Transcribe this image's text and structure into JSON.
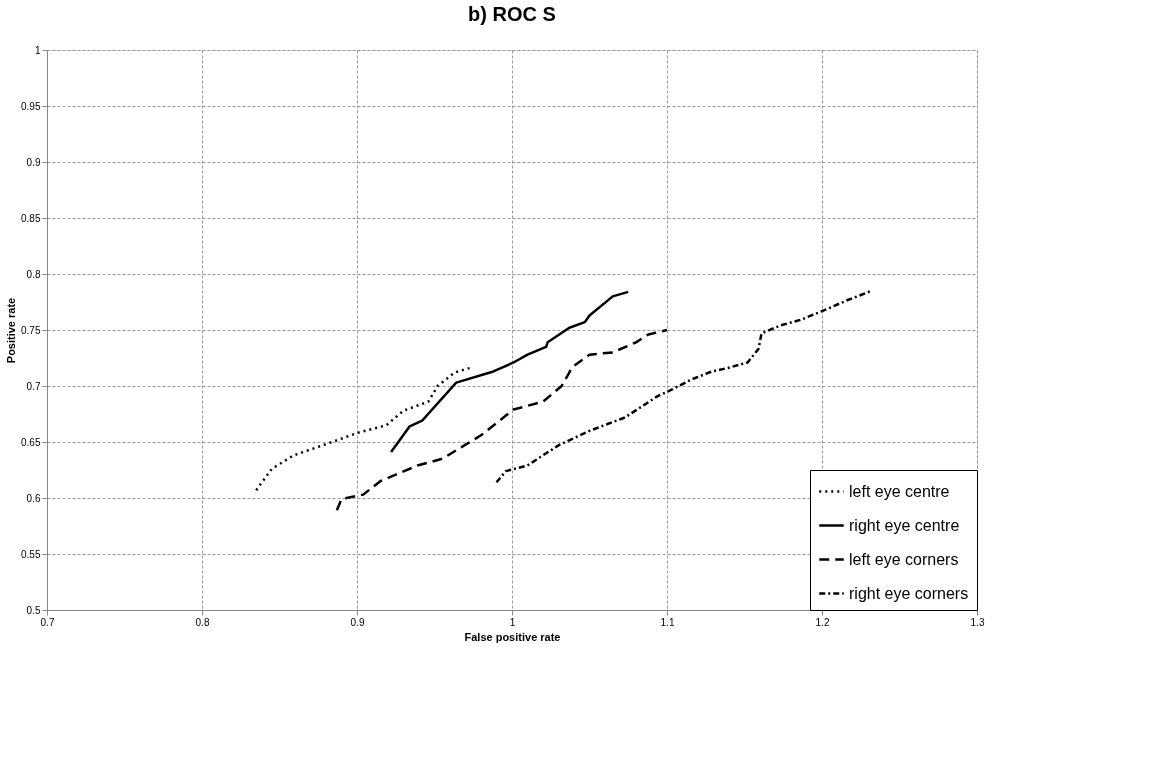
{
  "chart_data": {
    "type": "line",
    "title": "b) ROC S",
    "xlabel": "False positive rate",
    "ylabel": "Positive rate",
    "xlim": [
      0.7,
      1.3
    ],
    "xticks": [
      0.7,
      0.8,
      0.9,
      1,
      1.1,
      1.2,
      1.3
    ],
    "ylim": [
      0.5,
      1
    ],
    "yticks": [
      0.5,
      0.55,
      0.6,
      0.65,
      0.7,
      0.75,
      0.8,
      0.85,
      0.9,
      0.95,
      1
    ],
    "grid": true,
    "legend": "bottom right",
    "marker": "none",
    "series": [
      {
        "name": "left eye centre",
        "color": "#000000",
        "line_style": "dotted",
        "x": [
          0.835,
          0.845,
          0.859,
          0.884,
          0.9,
          0.919,
          0.93,
          0.946,
          0.952,
          0.963,
          0.975
        ],
        "values": [
          0.607,
          0.626,
          0.638,
          0.65,
          0.658,
          0.665,
          0.678,
          0.686,
          0.7,
          0.712,
          0.717
        ]
      },
      {
        "name": "right eye centre",
        "color": "#000000",
        "line_style": "solid",
        "x": [
          0.922,
          0.934,
          0.942,
          0.964,
          0.988,
          1.001,
          1.01,
          1.022,
          1.023,
          1.037,
          1.047,
          1.05,
          1.065,
          1.075
        ],
        "values": [
          0.641,
          0.664,
          0.669,
          0.703,
          0.713,
          0.721,
          0.728,
          0.735,
          0.739,
          0.752,
          0.757,
          0.763,
          0.78,
          0.784
        ]
      },
      {
        "name": "left eye corners",
        "color": "#000000",
        "line_style": "dashed",
        "x": [
          0.887,
          0.89,
          0.904,
          0.915,
          0.939,
          0.955,
          0.98,
          0.992,
          1.001,
          1.02,
          1.032,
          1.039,
          1.05,
          1.065,
          1.08,
          1.088,
          1.1
        ],
        "values": [
          0.589,
          0.599,
          0.603,
          0.615,
          0.629,
          0.635,
          0.656,
          0.669,
          0.679,
          0.686,
          0.7,
          0.717,
          0.728,
          0.73,
          0.739,
          0.746,
          0.75
        ]
      },
      {
        "name": "right eye corners",
        "color": "#000000",
        "line_style": "dashdot",
        "x": [
          0.99,
          0.996,
          1.01,
          1.021,
          1.03,
          1.05,
          1.073,
          1.094,
          1.102,
          1.116,
          1.129,
          1.139,
          1.152,
          1.159,
          1.161,
          1.173,
          1.186,
          1.195,
          1.202,
          1.217,
          1.232
        ],
        "values": [
          0.614,
          0.624,
          0.629,
          0.639,
          0.647,
          0.66,
          0.672,
          0.691,
          0.696,
          0.706,
          0.713,
          0.716,
          0.721,
          0.733,
          0.747,
          0.754,
          0.759,
          0.764,
          0.768,
          0.777,
          0.785
        ]
      }
    ]
  }
}
